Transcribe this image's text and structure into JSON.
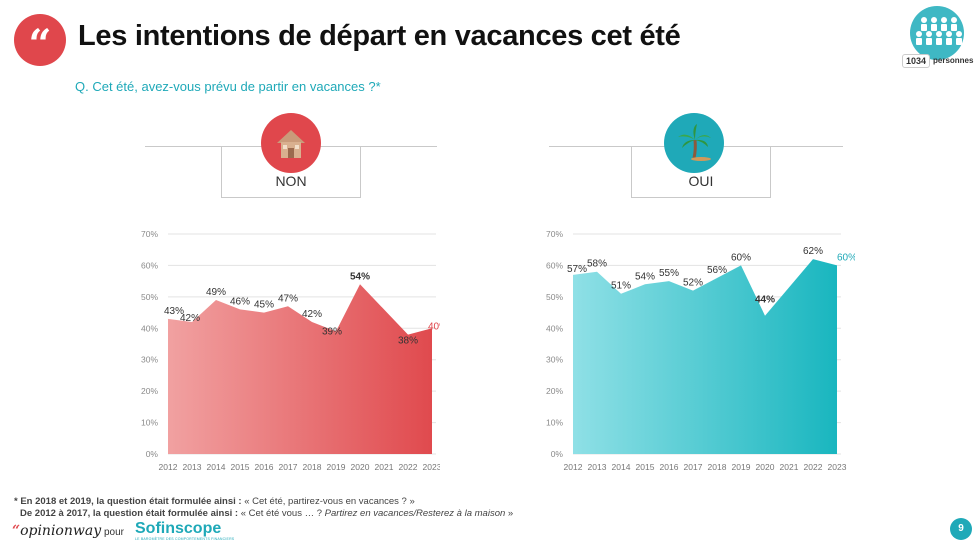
{
  "header": {
    "title": "Les intentions de départ en vacances cet été",
    "sample_count": "1034",
    "sample_label": "personnes",
    "question": "Q. Cet été, avez-vous prévu de partir en vacances ?*"
  },
  "icons": {
    "quote": "quote-icon",
    "people": "people-group-icon",
    "house": "house-icon",
    "palm": "palm-tree-icon"
  },
  "colors": {
    "non_light": "#f1a1a1",
    "non_dark": "#e04a4e",
    "oui_light": "#8fe0e6",
    "oui_dark": "#19b6bf",
    "accent_red": "#e0474c",
    "accent_teal": "#1fa9b8"
  },
  "chart_data": [
    {
      "type": "area",
      "label": "NON",
      "x": [
        "2012",
        "2013",
        "2014",
        "2015",
        "2016",
        "2017",
        "2018",
        "2019",
        "2020",
        "2021",
        "2022",
        "2023"
      ],
      "values": [
        43,
        42,
        49,
        46,
        45,
        47,
        42,
        39,
        54,
        null,
        38,
        40
      ],
      "data_labels": [
        "43%",
        "42%",
        "49%",
        "46%",
        "45%",
        "47%",
        "42%",
        "39%",
        "54%",
        "",
        "38%",
        "40%"
      ],
      "yticks": [
        "0%",
        "10%",
        "20%",
        "30%",
        "40%",
        "50%",
        "60%",
        "70%"
      ],
      "ylim": [
        0,
        70
      ],
      "grid": true
    },
    {
      "type": "area",
      "label": "OUI",
      "x": [
        "2012",
        "2013",
        "2014",
        "2015",
        "2016",
        "2017",
        "2018",
        "2019",
        "2020",
        "2021",
        "2022",
        "2023"
      ],
      "values": [
        57,
        58,
        51,
        54,
        55,
        52,
        56,
        60,
        44,
        null,
        62,
        60
      ],
      "data_labels": [
        "57%",
        "58%",
        "51%",
        "54%",
        "55%",
        "52%",
        "56%",
        "60%",
        "44%",
        "",
        "62%",
        "60%"
      ],
      "yticks": [
        "0%",
        "10%",
        "20%",
        "30%",
        "40%",
        "50%",
        "60%",
        "70%"
      ],
      "ylim": [
        0,
        70
      ],
      "grid": true
    }
  ],
  "footnotes": {
    "line1_bold": "* En 2018 et 2019, la question était formulée ainsi : ",
    "line1_text": "« Cet été, partirez-vous en vacances ? »",
    "line2_bold": "De 2012 à 2017, la question était formulée ainsi : ",
    "line2_text": "« Cet été vous … ? ",
    "line2_italic": "Partirez en vacances/Resterez à la maison",
    "line2_end": " »"
  },
  "brand": {
    "opinionway_quote": "“",
    "opinionway": "opinionway",
    "pour": "pour",
    "sofinscope": "Sofinscope",
    "sofinscope_sub": "LE BAROMÈTRE DES COMPORTEMENTS FINANCIERS"
  },
  "page_number": "9"
}
